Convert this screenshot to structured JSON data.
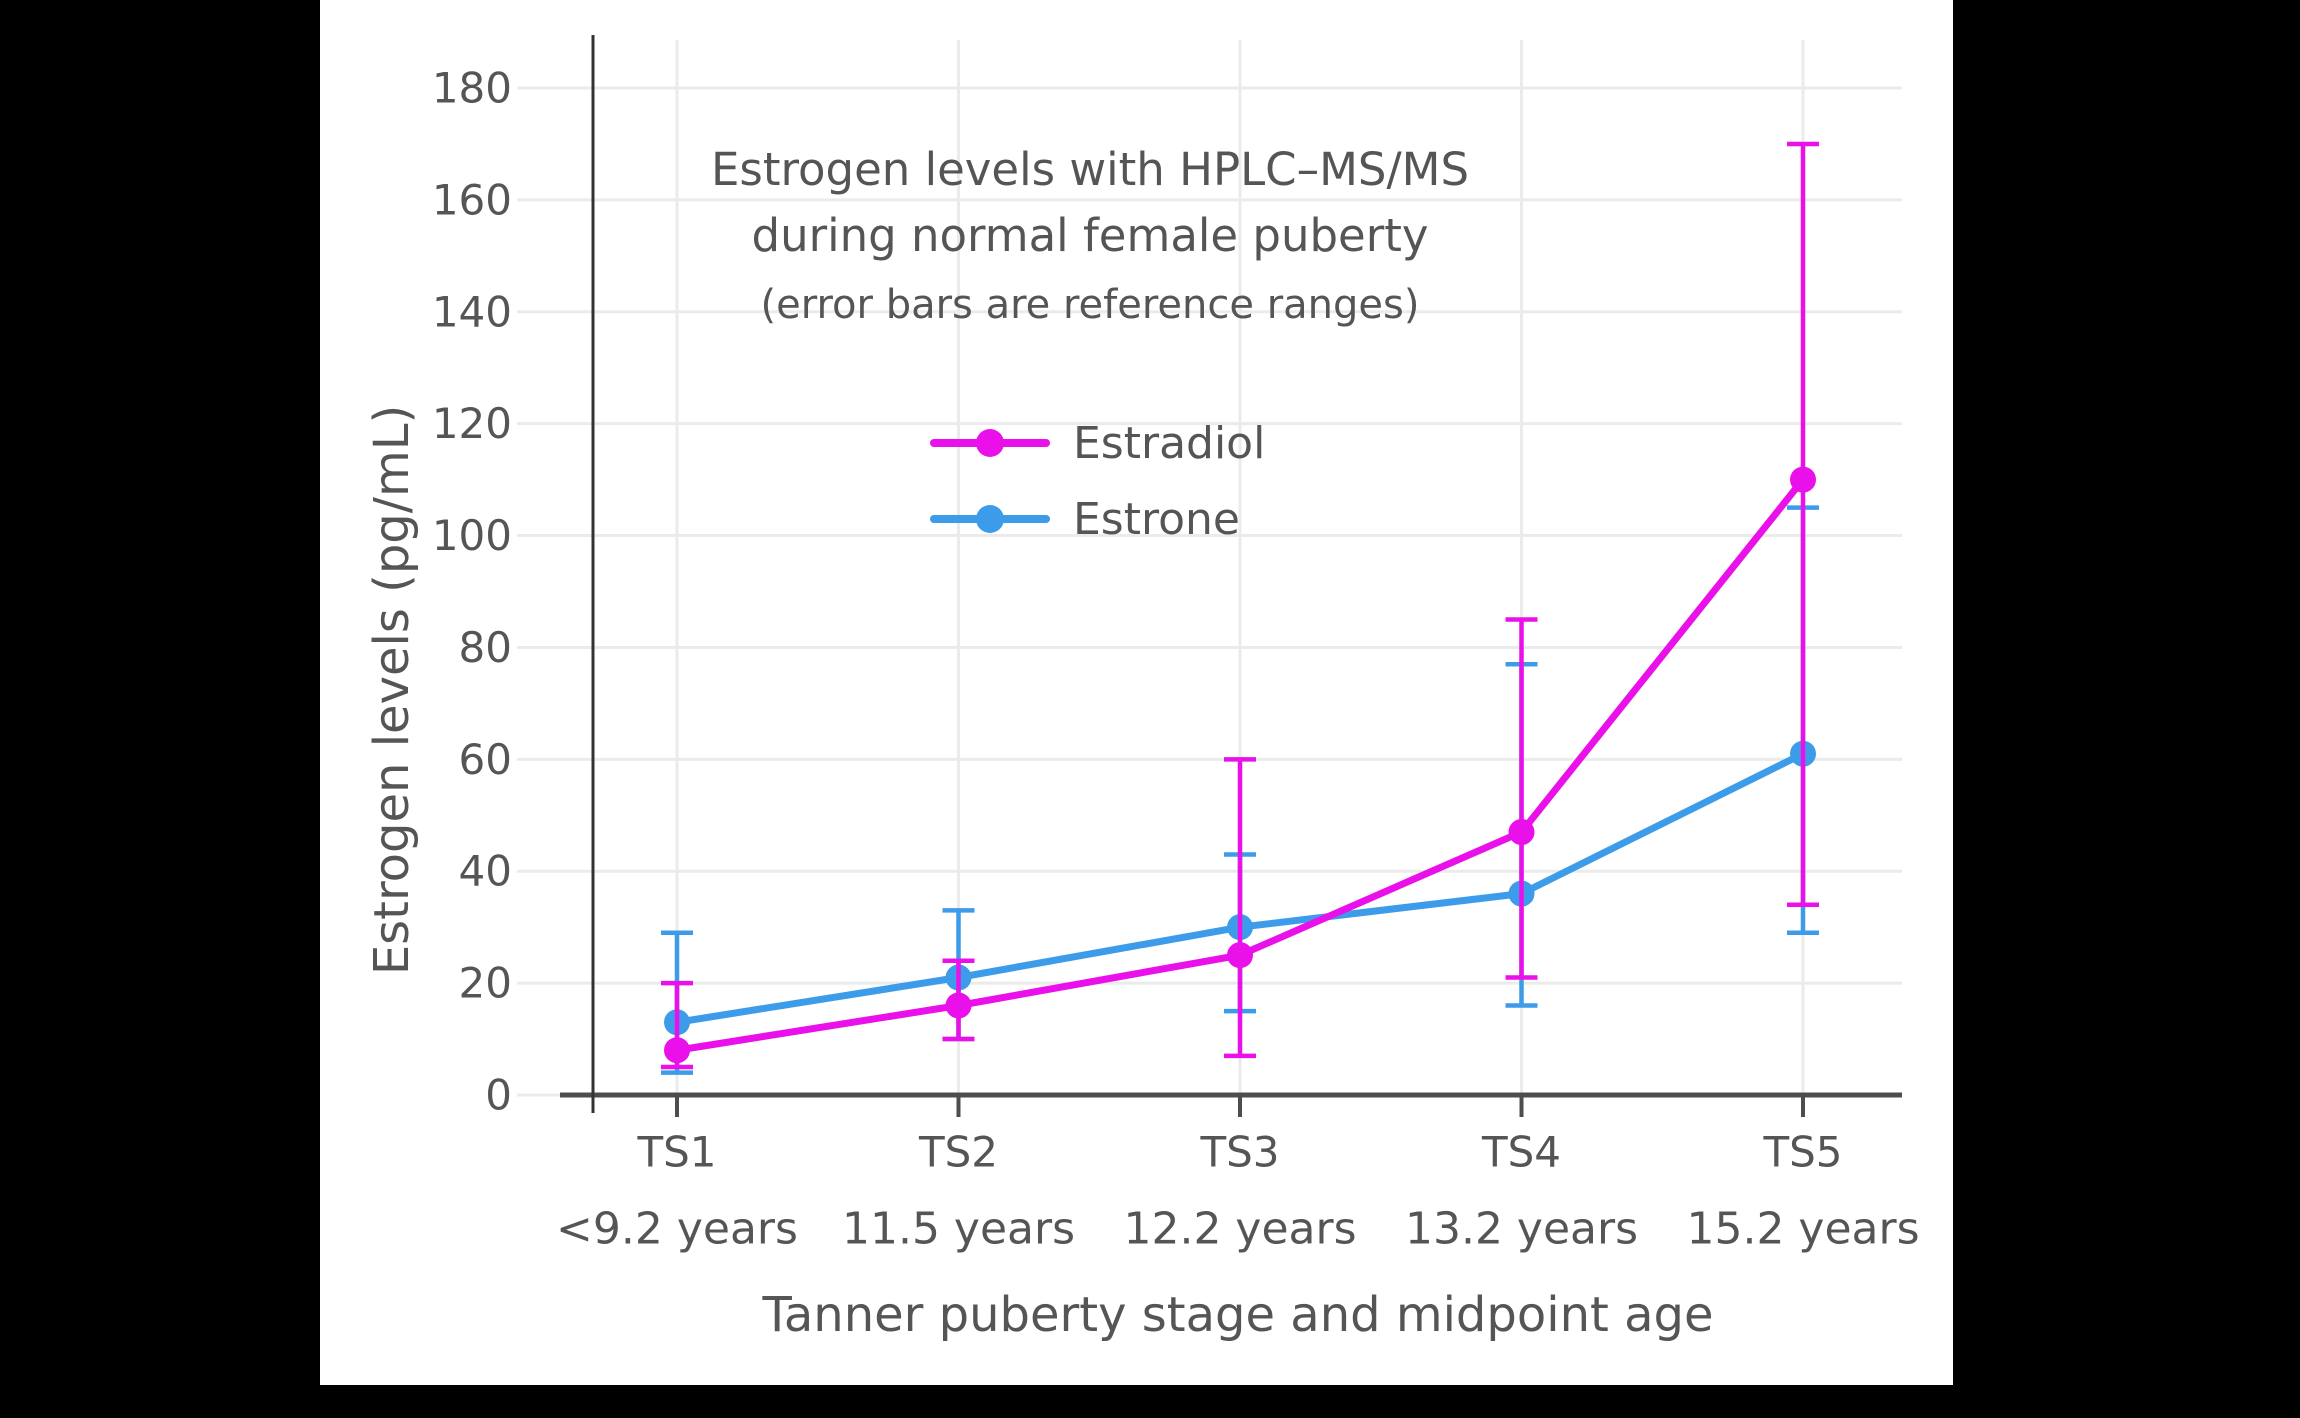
{
  "colors": {
    "page_background": "#000000",
    "figure_background": "#FFFFFF",
    "text": "#555555",
    "gridline": "#EBEBEB",
    "x_axis_line": "#4D4D4D",
    "y_axis_line": "#333333",
    "estradiol": "#EA10EA",
    "estrone": "#3D9CE9"
  },
  "chart_data": {
    "type": "line",
    "title_line1": "Estrogen levels with HPLC–MS/MS",
    "title_line2": "during normal female puberty",
    "subtitle": "(error bars are reference ranges)",
    "xlabel": "Tanner puberty stage and midpoint age",
    "ylabel": "Estrogen levels (pg/mL)",
    "categories": [
      "TS1",
      "TS2",
      "TS3",
      "TS4",
      "TS5"
    ],
    "category_ages": [
      "<9.2 years",
      "11.5 years",
      "12.2 years",
      "13.2 years",
      "15.2 years"
    ],
    "ylim": [
      0,
      180
    ],
    "ytick_step": 20,
    "ytick_labels": [
      "0",
      "20",
      "40",
      "60",
      "80",
      "100",
      "120",
      "140",
      "160",
      "180"
    ],
    "grid": true,
    "legend_position": "inside-top-left",
    "error_bar_meaning": "reference ranges",
    "series": [
      {
        "name": "Estradiol",
        "color": "#EA10EA",
        "values": [
          8,
          16,
          25,
          47,
          110
        ],
        "error_low": [
          5,
          10,
          7,
          21,
          34
        ],
        "error_high": [
          20,
          24,
          60,
          85,
          170
        ]
      },
      {
        "name": "Estrone",
        "color": "#3D9CE9",
        "values": [
          13,
          21,
          30,
          36,
          61
        ],
        "error_low": [
          4,
          10,
          15,
          16,
          29
        ],
        "error_high": [
          29,
          33,
          43,
          77,
          105
        ]
      }
    ]
  }
}
